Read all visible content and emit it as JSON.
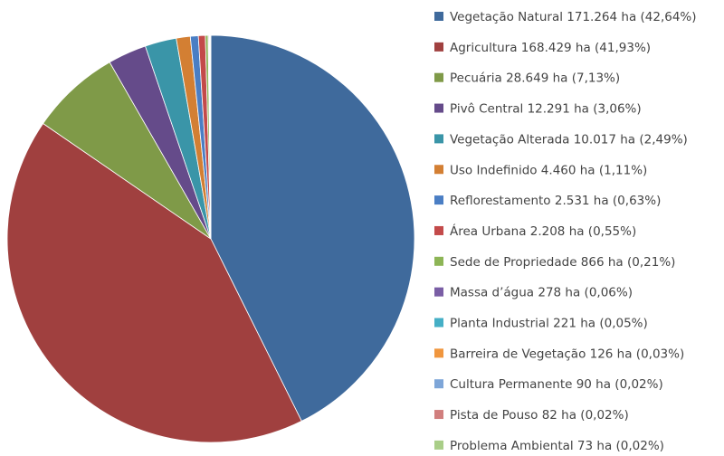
{
  "chart_data": {
    "type": "pie",
    "categories": [
      "Vegetação Natural 171.264 ha (42,64%)",
      "Agricultura 168.429 ha (41,93%)",
      "Pecuária 28.649 ha (7,13%)",
      "Pivô Central 12.291 ha (3,06%)",
      "Vegetação Alterada 10.017 ha (2,49%)",
      "Uso Indefinido 4.460 ha (1,11%)",
      "Reflorestamento 2.531 ha (0,63%)",
      "Área Urbana 2.208 ha (0,55%)",
      "Sede de Propriedade 866 ha (0,21%)",
      "Massa d’água 278 ha (0,06%)",
      "Planta Industrial 221 ha (0,05%)",
      "Barreira de Vegetação 126 ha (0,03%)",
      "Cultura Permanente 90 ha (0,02%)",
      "Pista de Pouso 82 ha (0,02%)",
      "Problema Ambiental 73 ha (0,02%)"
    ],
    "values": [
      171264,
      168429,
      28649,
      12291,
      10017,
      4460,
      2531,
      2208,
      866,
      278,
      221,
      126,
      90,
      82,
      73
    ],
    "colors": [
      "#3f6a9c",
      "#a0403f",
      "#7f9a48",
      "#654b8a",
      "#3a95a8",
      "#d37f33",
      "#4a7ec4",
      "#c34a4a",
      "#8db556",
      "#7a5ea5",
      "#45afc6",
      "#f0963e",
      "#7ea6d8",
      "#d17f7e",
      "#a9ce88"
    ],
    "legend": "right"
  }
}
